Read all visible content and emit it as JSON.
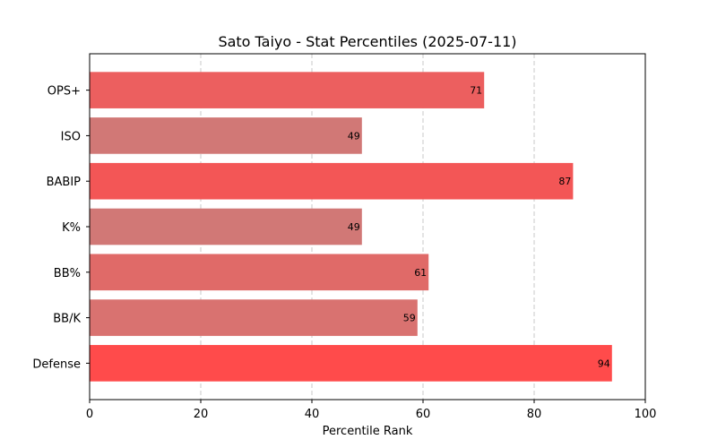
{
  "chart_data": {
    "type": "bar",
    "orientation": "horizontal",
    "title": "Sato Taiyo - Stat Percentiles (2025-07-11)",
    "xlabel": "Percentile Rank",
    "ylabel": "",
    "xlim": [
      0,
      100
    ],
    "xticks": [
      0,
      20,
      40,
      60,
      80,
      100
    ],
    "grid": "x-dashed",
    "categories": [
      "OPS+",
      "ISO",
      "BABIP",
      "K%",
      "BB%",
      "BB/K",
      "Defense"
    ],
    "values": [
      71,
      49,
      87,
      49,
      61,
      59,
      94
    ],
    "colors": [
      "#ec5f5f",
      "#d17876",
      "#f35656",
      "#d17876",
      "#e06a68",
      "#d97270",
      "#ff4b4b"
    ]
  }
}
